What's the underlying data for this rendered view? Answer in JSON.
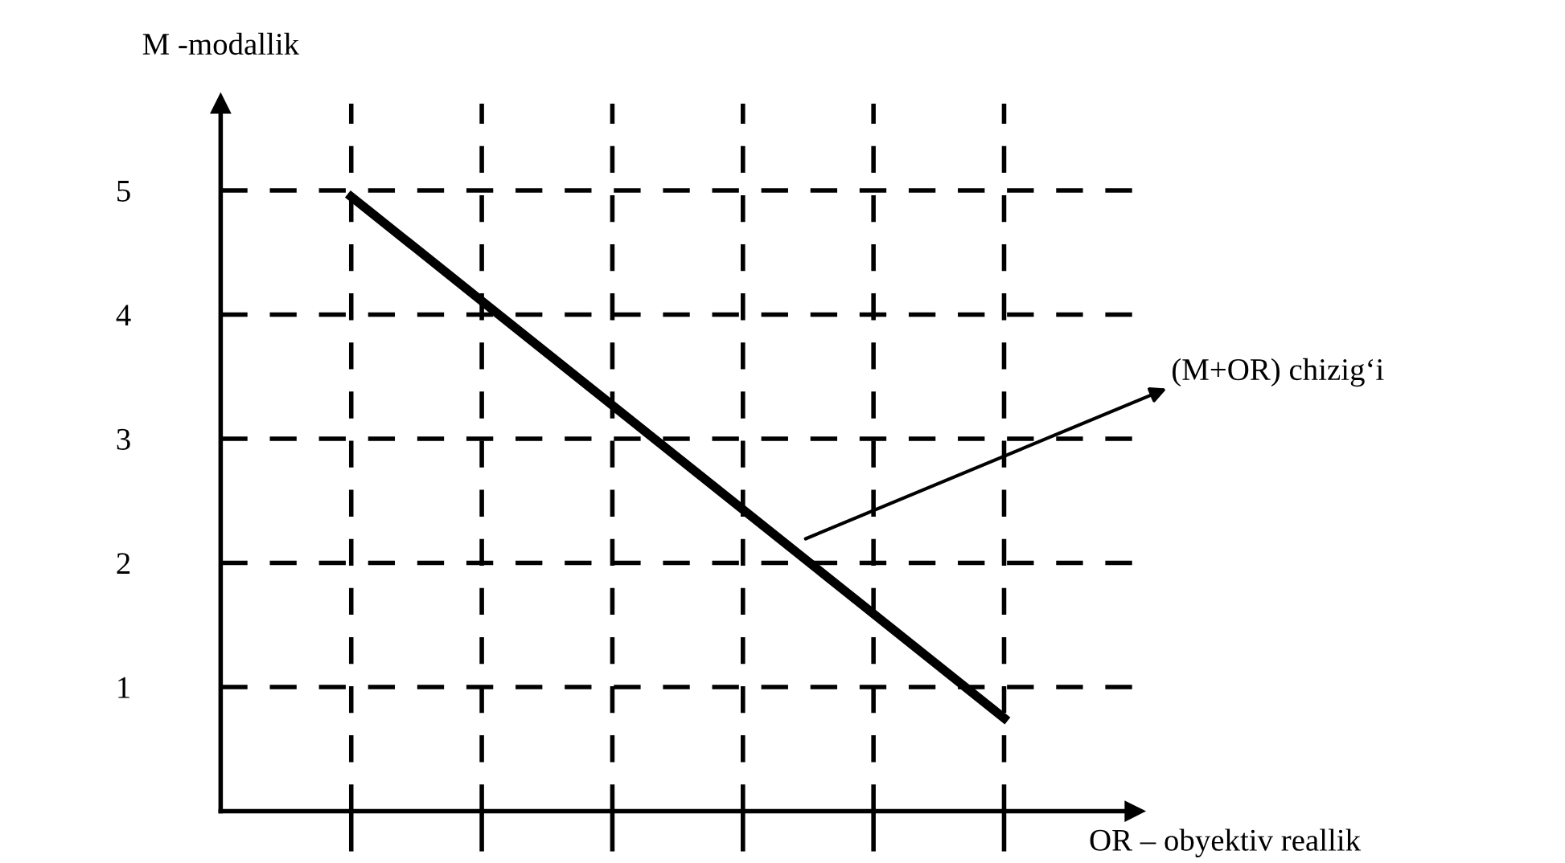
{
  "chart_data": {
    "type": "line",
    "ylabel": "M -modallik",
    "xlabel": "OR – obyektiv reallik",
    "categories": [
      null,
      null,
      null,
      null,
      null,
      null
    ],
    "series": [
      {
        "color": "#000000",
        "values": [
          4.95,
          4.11,
          3.27,
          2.43,
          1.59,
          0.75
        ]
      }
    ],
    "ylim": [
      0,
      5.7
    ],
    "yticks": [
      1,
      2,
      3,
      4,
      5
    ],
    "grid": true,
    "line_style": "solid",
    "marker": "none",
    "annotations": [
      "(M+OR) chizig‘i"
    ]
  }
}
